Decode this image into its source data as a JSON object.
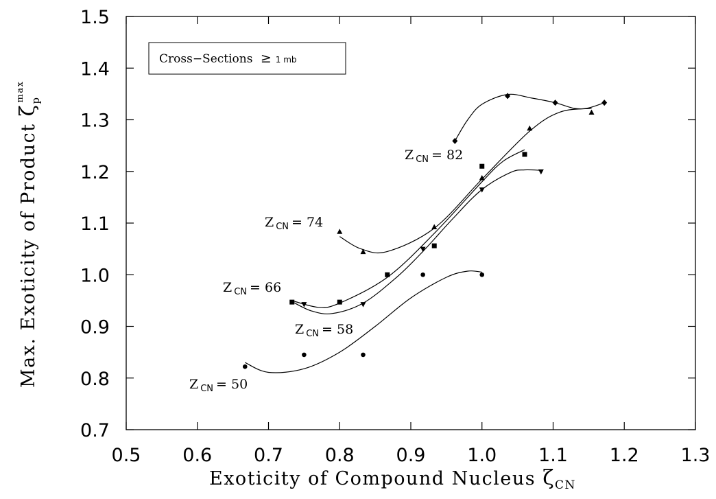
{
  "chart_data": {
    "type": "scatter",
    "xlim": [
      0.5,
      1.3
    ],
    "ylim": [
      0.7,
      1.5
    ],
    "xticks": [
      "0.5",
      "0.6",
      "0.7",
      "0.8",
      "0.9",
      "1.0",
      "1.1",
      "1.2",
      "1.3"
    ],
    "yticks": [
      "0.7",
      "0.8",
      "0.9",
      "1.0",
      "1.1",
      "1.2",
      "1.3",
      "1.4",
      "1.5"
    ],
    "xlabel": {
      "text": "Exoticity of Compound Nucleus ",
      "symbol": "ζ",
      "sub": "CN"
    },
    "ylabel": {
      "text": "Max. Exoticity of Product ",
      "symbol": "ζ",
      "sub": "p",
      "sup": "max"
    },
    "legend_box": {
      "text": "Cross−Sections ",
      "relation": "≥",
      "value": "1 mb",
      "placement": "top-left"
    },
    "series": [
      {
        "marker": "circle",
        "label": {
          "z": "Z",
          "sub": "CN",
          "value": "= 50"
        },
        "points": [
          [
            0.667,
            0.822
          ],
          [
            0.75,
            0.845
          ],
          [
            0.833,
            0.845
          ],
          [
            0.917,
            1.0
          ],
          [
            1.0,
            1.0
          ]
        ],
        "curve": [
          [
            0.667,
            0.83
          ],
          [
            0.7,
            0.811
          ],
          [
            0.75,
            0.818
          ],
          [
            0.8,
            0.85
          ],
          [
            0.85,
            0.9
          ],
          [
            0.9,
            0.955
          ],
          [
            0.95,
            0.995
          ],
          [
            0.98,
            1.007
          ],
          [
            1.0,
            1.005
          ]
        ]
      },
      {
        "marker": "triangle-down",
        "label": {
          "z": "Z",
          "sub": "CN",
          "value": "= 58"
        },
        "points": [
          [
            0.75,
            0.943
          ],
          [
            0.833,
            0.943
          ],
          [
            0.917,
            1.05
          ],
          [
            1.0,
            1.165
          ],
          [
            1.083,
            1.2
          ]
        ],
        "curve": [
          [
            0.733,
            0.948
          ],
          [
            0.76,
            0.93
          ],
          [
            0.79,
            0.925
          ],
          [
            0.833,
            0.945
          ],
          [
            0.88,
            0.995
          ],
          [
            0.917,
            1.045
          ],
          [
            0.96,
            1.11
          ],
          [
            1.0,
            1.165
          ],
          [
            1.04,
            1.198
          ],
          [
            1.06,
            1.203
          ],
          [
            1.083,
            1.202
          ]
        ]
      },
      {
        "marker": "square",
        "label": {
          "z": "Z",
          "sub": "CN",
          "value": "= 66"
        },
        "points": [
          [
            0.733,
            0.947
          ],
          [
            0.8,
            0.947
          ],
          [
            0.867,
            1.0
          ],
          [
            0.933,
            1.056
          ],
          [
            1.0,
            1.21
          ],
          [
            1.06,
            1.233
          ]
        ],
        "curve": [
          [
            0.733,
            0.95
          ],
          [
            0.77,
            0.937
          ],
          [
            0.8,
            0.945
          ],
          [
            0.867,
            0.995
          ],
          [
            0.933,
            1.08
          ],
          [
            1.0,
            1.18
          ],
          [
            1.03,
            1.22
          ],
          [
            1.06,
            1.242
          ]
        ]
      },
      {
        "marker": "triangle-up",
        "label": {
          "z": "Z",
          "sub": "CN",
          "value": "= 74"
        },
        "points": [
          [
            0.8,
            1.083
          ],
          [
            0.833,
            1.044
          ],
          [
            0.933,
            1.092
          ],
          [
            1.0,
            1.187
          ],
          [
            1.067,
            1.283
          ],
          [
            1.154,
            1.314
          ]
        ],
        "curve": [
          [
            0.8,
            1.074
          ],
          [
            0.83,
            1.05
          ],
          [
            0.867,
            1.045
          ],
          [
            0.933,
            1.09
          ],
          [
            1.0,
            1.185
          ],
          [
            1.067,
            1.278
          ],
          [
            1.11,
            1.315
          ],
          [
            1.154,
            1.322
          ]
        ]
      },
      {
        "marker": "diamond",
        "label": {
          "z": "Z",
          "sub": "CN",
          "value": "= 82"
        },
        "points": [
          [
            0.962,
            1.259
          ],
          [
            1.036,
            1.346
          ],
          [
            1.103,
            1.333
          ],
          [
            1.172,
            1.333
          ]
        ],
        "curve": [
          [
            0.962,
            1.259
          ],
          [
            0.98,
            1.3
          ],
          [
            1.0,
            1.33
          ],
          [
            1.036,
            1.349
          ],
          [
            1.07,
            1.342
          ],
          [
            1.103,
            1.333
          ],
          [
            1.13,
            1.322
          ],
          [
            1.15,
            1.323
          ],
          [
            1.172,
            1.333
          ]
        ]
      }
    ]
  }
}
